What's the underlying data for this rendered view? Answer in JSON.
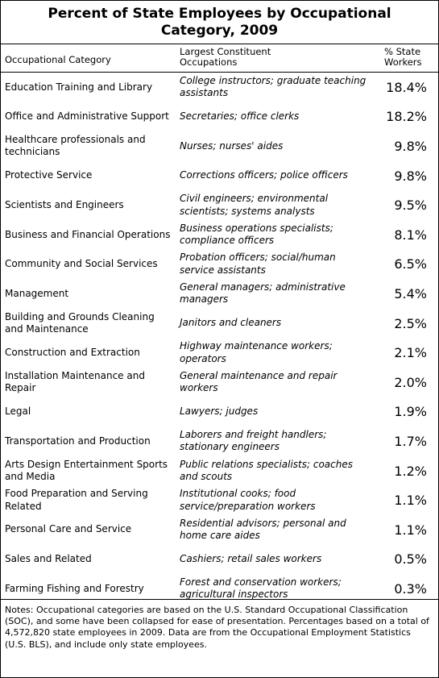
{
  "title": "Percent of State Employees by Occupational Category, 2009",
  "headers": {
    "category": "Occupational Category",
    "occupations": "Largest Constituent Occupations",
    "percent": "% State Workers"
  },
  "rows": [
    {
      "category": "Education Training and Library",
      "occupations": "College instructors; graduate teaching assistants",
      "percent": "18.4%"
    },
    {
      "category": "Office and Administrative Support",
      "occupations": "Secretaries; office clerks",
      "percent": "18.2%"
    },
    {
      "category": "Healthcare professionals and technicians",
      "occupations": "Nurses; nurses' aides",
      "percent": "9.8%"
    },
    {
      "category": "Protective Service",
      "occupations": "Corrections officers; police officers",
      "percent": "9.8%"
    },
    {
      "category": "Scientists and Engineers",
      "occupations": "Civil engineers; environmental scientists; systems analysts",
      "percent": "9.5%"
    },
    {
      "category": "Business and Financial Operations",
      "occupations": "Business operations specialists; compliance officers",
      "percent": "8.1%"
    },
    {
      "category": "Community and Social Services",
      "occupations": "Probation officers; social/human service assistants",
      "percent": "6.5%"
    },
    {
      "category": "Management",
      "occupations": "General managers; administrative managers",
      "percent": "5.4%"
    },
    {
      "category": "Building and Grounds Cleaning and Maintenance",
      "occupations": "Janitors and cleaners",
      "percent": "2.5%"
    },
    {
      "category": "Construction and Extraction",
      "occupations": "Highway maintenance workers; operators",
      "percent": "2.1%"
    },
    {
      "category": "Installation Maintenance and Repair",
      "occupations": "General maintenance and repair workers",
      "percent": "2.0%"
    },
    {
      "category": "Legal",
      "occupations": "Lawyers; judges",
      "percent": "1.9%"
    },
    {
      "category": "Transportation and Production",
      "occupations": "Laborers and freight handlers; stationary engineers",
      "percent": "1.7%"
    },
    {
      "category": "Arts Design Entertainment Sports and Media",
      "occupations": "Public relations specialists; coaches and scouts",
      "percent": "1.2%"
    },
    {
      "category": "Food Preparation and Serving Related",
      "occupations": "Institutional cooks; food service/preparation workers",
      "percent": "1.1%"
    },
    {
      "category": "Personal Care and Service",
      "occupations": "Residential advisors; personal and home care aides",
      "percent": "1.1%"
    },
    {
      "category": "Sales and Related",
      "occupations": "Cashiers; retail sales workers",
      "percent": "0.5%"
    },
    {
      "category": "Farming Fishing and Forestry",
      "occupations": "Forest and conservation workers; agricultural inspectors",
      "percent": "0.3%"
    }
  ],
  "notes": "Notes: Occupational categories are based on the U.S. Standard Occupational Classification (SOC), and some have been collapsed for ease of presentation. Percentages based on a total of 4,572,820 state employees in 2009.  Data are from the Occupational Employment Statistics (U.S. BLS), and include only state employees."
}
